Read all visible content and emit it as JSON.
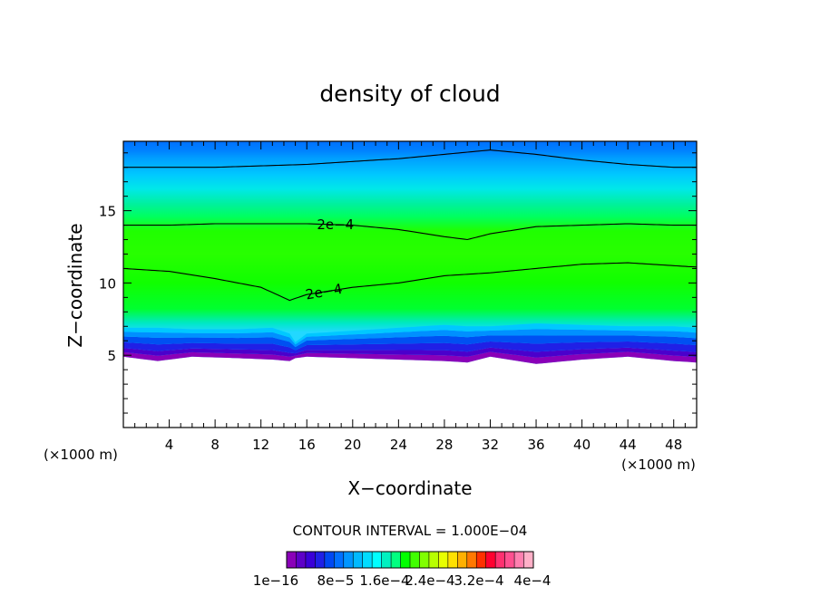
{
  "chart_data": {
    "type": "heatmap",
    "title": "density of cloud",
    "xlabel": "X−coordinate",
    "ylabel": "Z−coordinate",
    "x_unit_left": "(×1000 m)",
    "x_unit_right": "(×1000 m)",
    "xlim": [
      0,
      50
    ],
    "ylim": [
      0,
      19.8
    ],
    "x_ticks": [
      4,
      8,
      12,
      16,
      20,
      24,
      28,
      32,
      36,
      40,
      44,
      48
    ],
    "x_tick_labels": [
      "4",
      "8",
      "12",
      "16",
      "20",
      "24",
      "28",
      "32",
      "36",
      "40",
      "44",
      "48"
    ],
    "y_ticks": [
      5,
      10,
      15
    ],
    "y_tick_labels": [
      "5",
      "10",
      "15"
    ],
    "contour_interval_text": "CONTOUR INTERVAL = 1.000E−04",
    "colorbar": {
      "labels": [
        "1e−16",
        "8e−5",
        "1.6e−4",
        "2.4e−4",
        "3.2e−4",
        "4e−4"
      ],
      "colors": [
        "#8a00b8",
        "#5d00c8",
        "#3a00d8",
        "#2020e6",
        "#0048f2",
        "#0070ff",
        "#0096ff",
        "#00baff",
        "#00dcff",
        "#00ffff",
        "#00f0c0",
        "#00ff80",
        "#00ff00",
        "#40ff00",
        "#80ff00",
        "#b8ff00",
        "#e8ff00",
        "#ffe000",
        "#ffb000",
        "#ff7800",
        "#ff3000",
        "#ff0030",
        "#ff3070",
        "#ff5090",
        "#ff80b0",
        "#ffb0c8"
      ]
    },
    "boundaries": {
      "x": [
        0,
        3,
        6,
        10,
        13,
        14.5,
        15,
        16,
        20,
        24,
        28,
        30,
        32,
        36,
        40,
        44,
        48,
        50
      ],
      "bottom_edge": [
        4.9,
        4.6,
        4.9,
        4.8,
        4.7,
        4.6,
        4.8,
        4.9,
        4.8,
        4.7,
        4.6,
        4.5,
        4.9,
        4.4,
        4.7,
        4.9,
        4.6,
        4.5
      ],
      "top_edge": [
        6.9,
        6.9,
        6.8,
        6.8,
        6.9,
        6.5,
        5.9,
        6.5,
        6.7,
        6.9,
        7.1,
        7.0,
        7.0,
        7.2,
        7.1,
        7.0,
        7.0,
        6.9
      ]
    },
    "contours": [
      {
        "label": "2e−4",
        "x": [
          0,
          4,
          8,
          12,
          14.5,
          16,
          20,
          24,
          28,
          30,
          32,
          36,
          40,
          44,
          48,
          50
        ],
        "z": [
          11.0,
          10.8,
          10.3,
          9.7,
          8.8,
          9.2,
          9.7,
          10.0,
          10.5,
          10.6,
          10.7,
          11.0,
          11.3,
          11.4,
          11.2,
          11.1
        ]
      },
      {
        "label": "2e−4",
        "x": [
          0,
          4,
          8,
          12,
          16,
          20,
          24,
          28,
          30,
          32,
          36,
          40,
          44,
          48,
          50
        ],
        "z": [
          14.0,
          14.0,
          14.1,
          14.1,
          14.1,
          14.0,
          13.7,
          13.2,
          13.0,
          13.4,
          13.9,
          14.0,
          14.1,
          14.0,
          14.0
        ]
      },
      {
        "label": "",
        "x": [
          0,
          4,
          8,
          12,
          16,
          20,
          24,
          28,
          32,
          36,
          40,
          44,
          48,
          50
        ],
        "z": [
          18.0,
          18.0,
          18.0,
          18.1,
          18.2,
          18.4,
          18.6,
          18.9,
          19.2,
          18.9,
          18.5,
          18.2,
          18.0,
          18.0
        ]
      }
    ]
  }
}
